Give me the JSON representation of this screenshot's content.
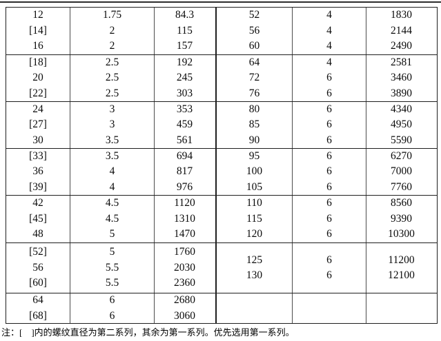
{
  "note": "注：[　]内的螺纹直径为第二系列，其余为第一系列。优先选用第一系列。",
  "table": {
    "left": {
      "groups": [
        {
          "cols": [
            [
              "12",
              "[14]",
              "16"
            ],
            [
              "1.75",
              "2",
              "2"
            ],
            [
              "84.3",
              "115",
              "157"
            ]
          ]
        },
        {
          "cols": [
            [
              "[18]",
              "20",
              "[22]"
            ],
            [
              "2.5",
              "2.5",
              "2.5"
            ],
            [
              "192",
              "245",
              "303"
            ]
          ]
        },
        {
          "cols": [
            [
              "24",
              "[27]",
              "30"
            ],
            [
              "3",
              "3",
              "3.5"
            ],
            [
              "353",
              "459",
              "561"
            ]
          ]
        },
        {
          "cols": [
            [
              "[33]",
              "36",
              "[39]"
            ],
            [
              "3.5",
              "4",
              "4"
            ],
            [
              "694",
              "817",
              "976"
            ]
          ]
        },
        {
          "cols": [
            [
              "42",
              "[45]",
              "48"
            ],
            [
              "4.5",
              "4.5",
              "5"
            ],
            [
              "1120",
              "1310",
              "1470"
            ]
          ]
        },
        {
          "cols": [
            [
              "[52]",
              "56",
              "[60]"
            ],
            [
              "5",
              "5.5",
              "5.5"
            ],
            [
              "1760",
              "2030",
              "2360"
            ]
          ]
        },
        {
          "cols": [
            [
              "64",
              "[68]"
            ],
            [
              "6",
              "6"
            ],
            [
              "2680",
              "3060"
            ]
          ]
        }
      ]
    },
    "right": {
      "groups": [
        {
          "cols": [
            [
              "52",
              "56",
              "60"
            ],
            [
              "4",
              "4",
              "4"
            ],
            [
              "1830",
              "2144",
              "2490"
            ]
          ]
        },
        {
          "cols": [
            [
              "64",
              "72",
              "76"
            ],
            [
              "4",
              "6",
              "6"
            ],
            [
              "2581",
              "3460",
              "3890"
            ]
          ]
        },
        {
          "cols": [
            [
              "80",
              "85",
              "90"
            ],
            [
              "6",
              "6",
              "6"
            ],
            [
              "4340",
              "4950",
              "5590"
            ]
          ]
        },
        {
          "cols": [
            [
              "95",
              "100",
              "105"
            ],
            [
              "6",
              "6",
              "6"
            ],
            [
              "6270",
              "7000",
              "7760"
            ]
          ]
        },
        {
          "cols": [
            [
              "110",
              "115",
              "120"
            ],
            [
              "6",
              "6",
              "6"
            ],
            [
              "8560",
              "9390",
              "10300"
            ]
          ]
        },
        {
          "cols": [
            [
              "125",
              "130"
            ],
            [
              "6",
              "6"
            ],
            [
              "11200",
              "12100"
            ]
          ]
        },
        {
          "cols": [
            [],
            [],
            []
          ]
        }
      ]
    }
  }
}
